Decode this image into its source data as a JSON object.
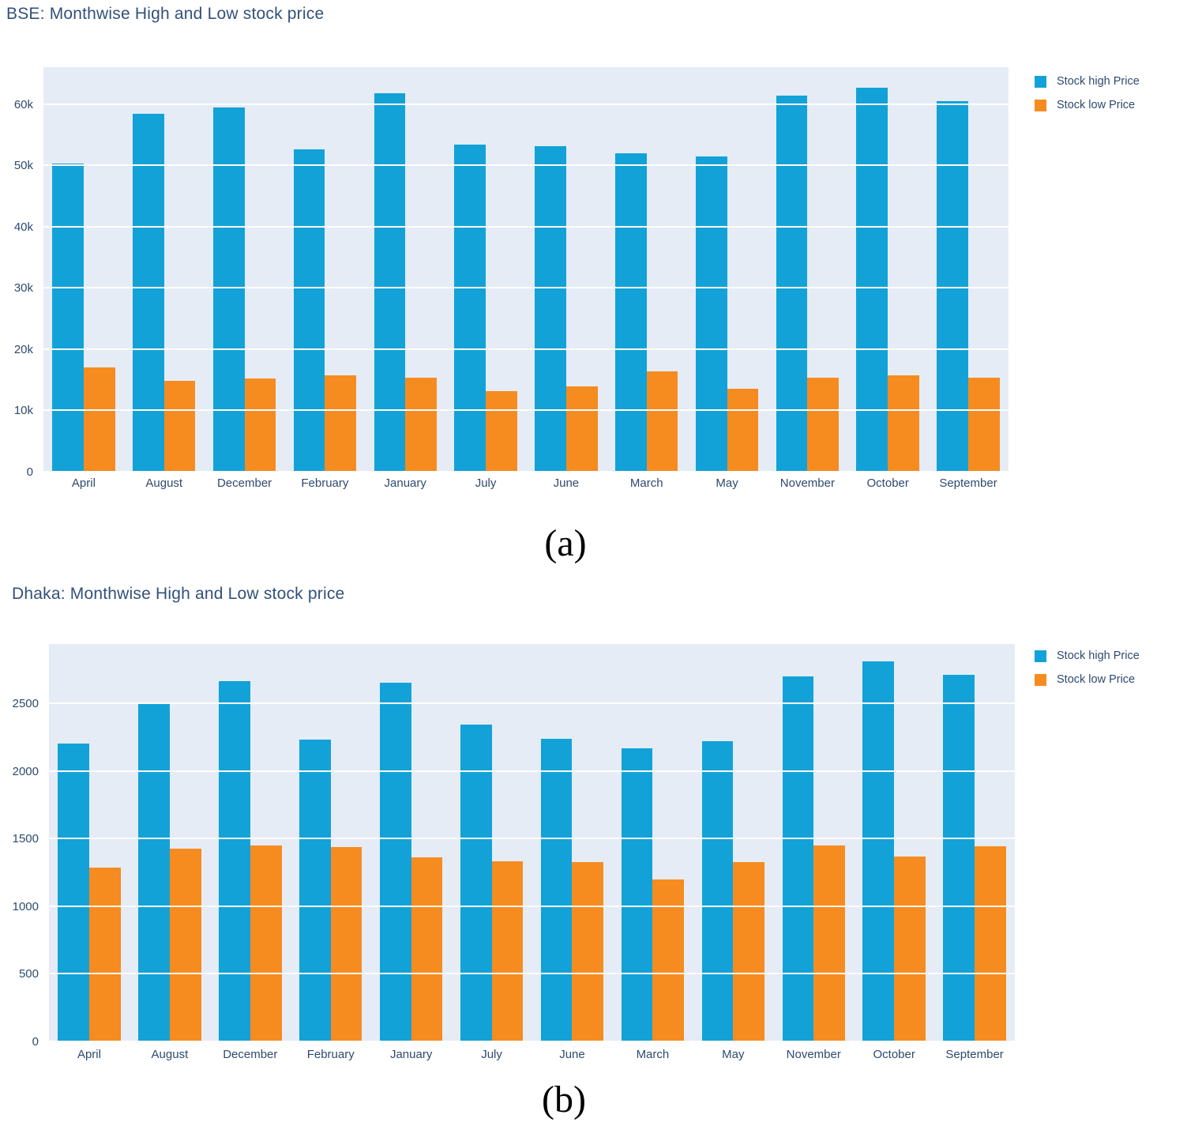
{
  "figure": {
    "caption_a": "(a)",
    "caption_b": "(b)"
  },
  "colors": {
    "high": "#12a2d7",
    "low": "#f68b20",
    "plot_background": "#e5ecf6",
    "grid": "#ffffff",
    "text": "#2e4a6e",
    "title_text": "#33507a"
  },
  "legend": {
    "items": [
      {
        "label": "Stock high Price",
        "color": "#12a2d7",
        "icon": "legend-swatch-square"
      },
      {
        "label": "Stock low Price",
        "color": "#f68b20",
        "icon": "legend-swatch-square"
      }
    ],
    "position": "outside-top-right"
  },
  "chart_data": [
    {
      "type": "bar",
      "title": "BSE: Monthwise High and Low stock price",
      "categories": [
        "April",
        "August",
        "December",
        "February",
        "January",
        "July",
        "June",
        "March",
        "May",
        "November",
        "October",
        "September"
      ],
      "series": [
        {
          "name": "Stock high Price",
          "color": "#12a2d7",
          "values": [
            50300,
            58400,
            59400,
            52600,
            61800,
            53400,
            53100,
            51900,
            51500,
            61300,
            62600,
            60500
          ]
        },
        {
          "name": "Stock low Price",
          "color": "#f68b20",
          "values": [
            17000,
            14800,
            15200,
            15700,
            15400,
            13100,
            13900,
            16400,
            13500,
            15300,
            15700,
            15300
          ]
        }
      ],
      "xlabel": "",
      "ylabel": "",
      "ylim": [
        0,
        66000
      ],
      "yticks": [
        {
          "v": 0,
          "label": "0"
        },
        {
          "v": 10000,
          "label": "10k"
        },
        {
          "v": 20000,
          "label": "20k"
        },
        {
          "v": 30000,
          "label": "30k"
        },
        {
          "v": 40000,
          "label": "40k"
        },
        {
          "v": 50000,
          "label": "50k"
        },
        {
          "v": 60000,
          "label": "60k"
        }
      ],
      "grid": true,
      "legend_position": "outside-top-right"
    },
    {
      "type": "bar",
      "title": "Dhaka: Monthwise High and Low stock price",
      "categories": [
        "April",
        "August",
        "December",
        "February",
        "January",
        "July",
        "June",
        "March",
        "May",
        "November",
        "October",
        "September"
      ],
      "series": [
        {
          "name": "Stock high Price",
          "color": "#12a2d7",
          "values": [
            2205,
            2500,
            2665,
            2230,
            2655,
            2345,
            2240,
            2170,
            2220,
            2700,
            2810,
            2715
          ]
        },
        {
          "name": "Stock low Price",
          "color": "#f68b20",
          "values": [
            1285,
            1425,
            1450,
            1440,
            1360,
            1335,
            1325,
            1200,
            1325,
            1450,
            1365,
            1445
          ]
        }
      ],
      "xlabel": "",
      "ylabel": "",
      "ylim": [
        0,
        2940
      ],
      "yticks": [
        {
          "v": 0,
          "label": "0"
        },
        {
          "v": 500,
          "label": "500"
        },
        {
          "v": 1000,
          "label": "1000"
        },
        {
          "v": 1500,
          "label": "1500"
        },
        {
          "v": 2000,
          "label": "2000"
        },
        {
          "v": 2500,
          "label": "2500"
        }
      ],
      "grid": true,
      "legend_position": "outside-top-right"
    }
  ]
}
